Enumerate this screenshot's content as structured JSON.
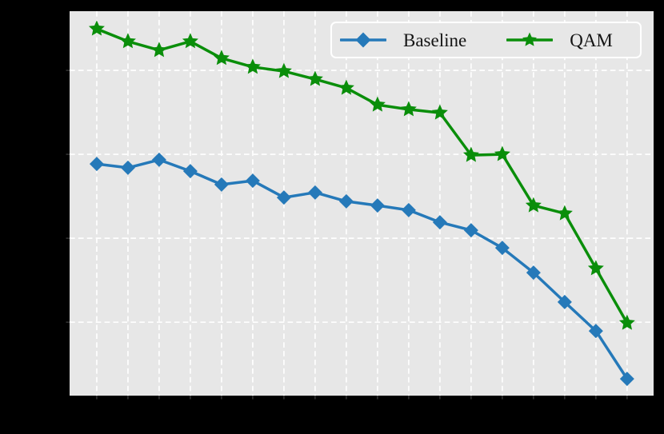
{
  "figure": {
    "background_color": "#000000",
    "note": "axis tick labels and axis titles are not visible (rendered black on black)"
  },
  "chart_data": {
    "type": "line",
    "title": "",
    "xlabel": "",
    "ylabel": "",
    "x": [
      1,
      2,
      3,
      4,
      5,
      6,
      7,
      8,
      9,
      10,
      11,
      12,
      13,
      14,
      15,
      16,
      17,
      18
    ],
    "series": [
      {
        "name": "Baseline",
        "marker": "diamond",
        "color": "#2579b9",
        "values": [
          0.577,
          0.568,
          0.587,
          0.56,
          0.528,
          0.537,
          0.497,
          0.509,
          0.488,
          0.478,
          0.467,
          0.438,
          0.419,
          0.377,
          0.318,
          0.248,
          0.179,
          0.065
        ]
      },
      {
        "name": "QAM",
        "marker": "star",
        "color": "#0a8e0a",
        "values": [
          0.899,
          0.869,
          0.848,
          0.869,
          0.829,
          0.808,
          0.798,
          0.779,
          0.758,
          0.718,
          0.707,
          0.699,
          0.598,
          0.6,
          0.478,
          0.459,
          0.328,
          0.198
        ]
      }
    ],
    "xlim": [
      0.13,
      18.85
    ],
    "ylim": [
      0.025,
      0.941
    ],
    "x_gridlines": [
      1,
      2,
      3,
      4,
      5,
      6,
      7,
      8,
      9,
      10,
      11,
      12,
      13,
      14,
      15,
      16,
      17,
      18
    ],
    "y_gridlines": [
      0.2,
      0.4,
      0.6,
      0.8
    ],
    "grid": {
      "on": true,
      "color": "#fdfdfd",
      "dash": [
        6.7,
        4.2
      ],
      "width": 1.8
    },
    "plot_bg": "#e7e7e7",
    "ticks": {
      "color": "#3a3a3a",
      "length": 4.5,
      "width": 1.4
    },
    "line_width": 3.5,
    "marker_sizes": {
      "diamond_half_width": 9,
      "star_outer_radius": 10.5,
      "star_inner_ratio": 0.47
    },
    "legend": {
      "position": "upper right",
      "border_color": "#ffffff",
      "bg_color": "#e7e7e7"
    }
  }
}
